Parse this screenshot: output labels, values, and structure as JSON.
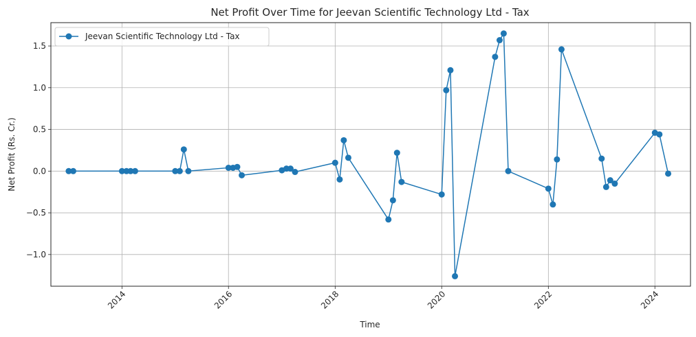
{
  "chart_data": {
    "type": "line",
    "title": "Net Profit Over Time for Jeevan Scientific Technology Ltd - Tax",
    "xlabel": "Time",
    "ylabel": "Net Profit (Rs. Cr.)",
    "grid": true,
    "legend_position": "top-left",
    "xlim": [
      "2012-09-01",
      "2024-09-01"
    ],
    "ylim": [
      -1.38,
      1.78
    ],
    "x_ticks": [
      "2014",
      "2016",
      "2018",
      "2020",
      "2022",
      "2024"
    ],
    "y_ticks": [
      -1.0,
      -0.5,
      0.0,
      0.5,
      1.0,
      1.5
    ],
    "y_tick_labels": [
      "−1.0",
      "−0.5",
      "0.0",
      "0.5",
      "1.0",
      "1.5"
    ],
    "series": [
      {
        "name": "Jeevan Scientific Technology Ltd - Tax",
        "color": "#1f77b4",
        "marker": "circle",
        "x": [
          "2013-01-01",
          "2013-02-01",
          "2014-01-01",
          "2014-02-01",
          "2014-03-01",
          "2014-04-01",
          "2015-01-01",
          "2015-02-01",
          "2015-03-01",
          "2015-04-01",
          "2016-01-01",
          "2016-02-01",
          "2016-03-01",
          "2016-04-01",
          "2017-01-01",
          "2017-02-01",
          "2017-03-01",
          "2017-04-01",
          "2018-01-01",
          "2018-02-01",
          "2018-03-01",
          "2018-04-01",
          "2019-01-01",
          "2019-02-01",
          "2019-03-01",
          "2019-04-01",
          "2020-01-01",
          "2020-02-01",
          "2020-03-01",
          "2020-04-01",
          "2021-01-01",
          "2021-02-01",
          "2021-03-01",
          "2021-04-01",
          "2022-01-01",
          "2022-02-01",
          "2022-03-01",
          "2022-04-01",
          "2023-01-01",
          "2023-02-01",
          "2023-03-01",
          "2023-04-01",
          "2024-01-01",
          "2024-02-01",
          "2024-04-01"
        ],
        "y": [
          0.0,
          0.0,
          0.0,
          0.0,
          0.0,
          0.0,
          0.0,
          0.0,
          0.26,
          0.0,
          0.04,
          0.04,
          0.05,
          -0.05,
          0.01,
          0.03,
          0.03,
          -0.01,
          0.1,
          -0.1,
          0.37,
          0.16,
          -0.58,
          -0.35,
          0.22,
          -0.13,
          -0.28,
          0.97,
          1.21,
          -1.26,
          1.37,
          1.57,
          1.65,
          0.0,
          -0.21,
          -0.4,
          0.14,
          1.46,
          0.15,
          -0.19,
          -0.11,
          -0.15,
          0.46,
          0.44,
          -0.03
        ]
      }
    ]
  }
}
